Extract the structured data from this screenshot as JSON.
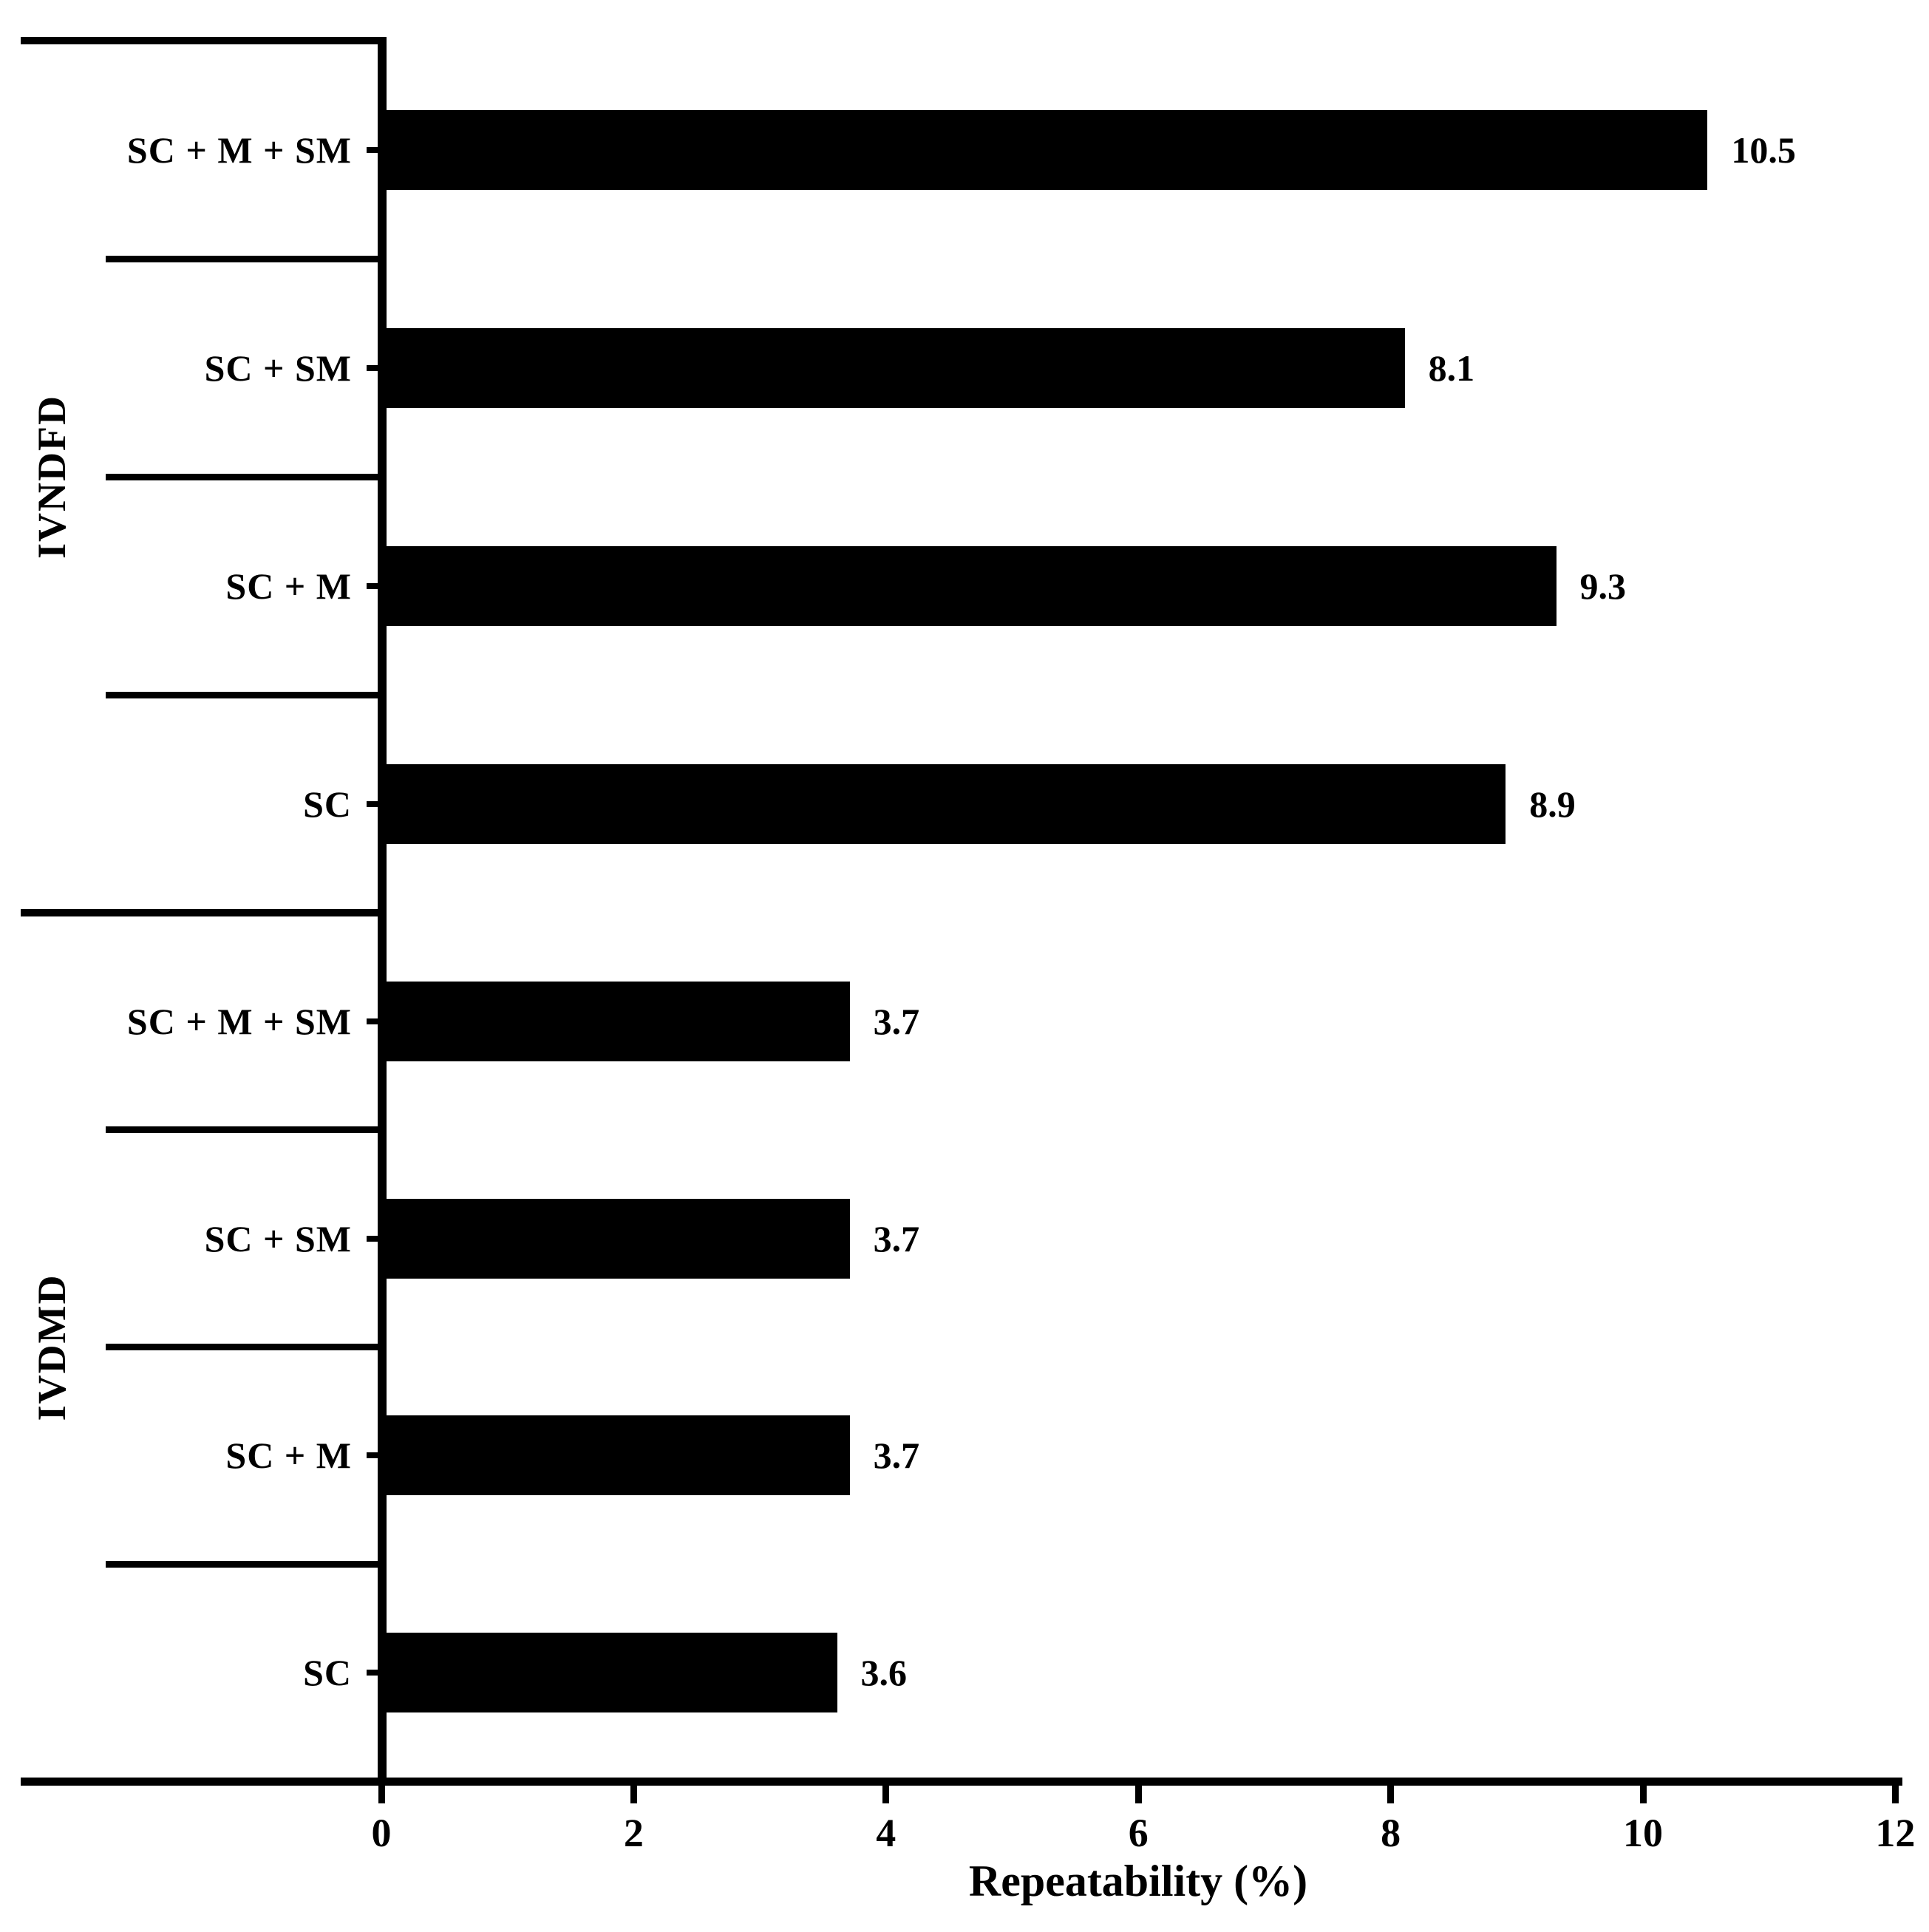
{
  "chart_data": {
    "type": "bar",
    "orientation": "horizontal",
    "title": "",
    "xlabel": "Repeatability (%)",
    "ylabel": "",
    "xlim": [
      0,
      12
    ],
    "xticks": [
      0,
      2,
      4,
      6,
      8,
      10,
      12
    ],
    "grid": false,
    "legend": false,
    "bar_color": "#000000",
    "background_color": "#ffffff",
    "text_color": "#000000",
    "groups": [
      {
        "name": "IVNDFD",
        "categories": [
          "SC + M + SM",
          "SC + SM",
          "SC + M",
          "SC"
        ],
        "values": [
          10.5,
          8.1,
          9.3,
          8.9
        ],
        "value_labels": [
          "10.5",
          "8.1",
          "9.3",
          "8.9"
        ]
      },
      {
        "name": "IVDMD",
        "categories": [
          "SC + M + SM",
          "SC + SM",
          "SC + M",
          "SC"
        ],
        "values": [
          3.7,
          3.7,
          3.7,
          3.6
        ],
        "value_labels": [
          "3.7",
          "3.7",
          "3.7",
          "3.6"
        ]
      }
    ]
  }
}
